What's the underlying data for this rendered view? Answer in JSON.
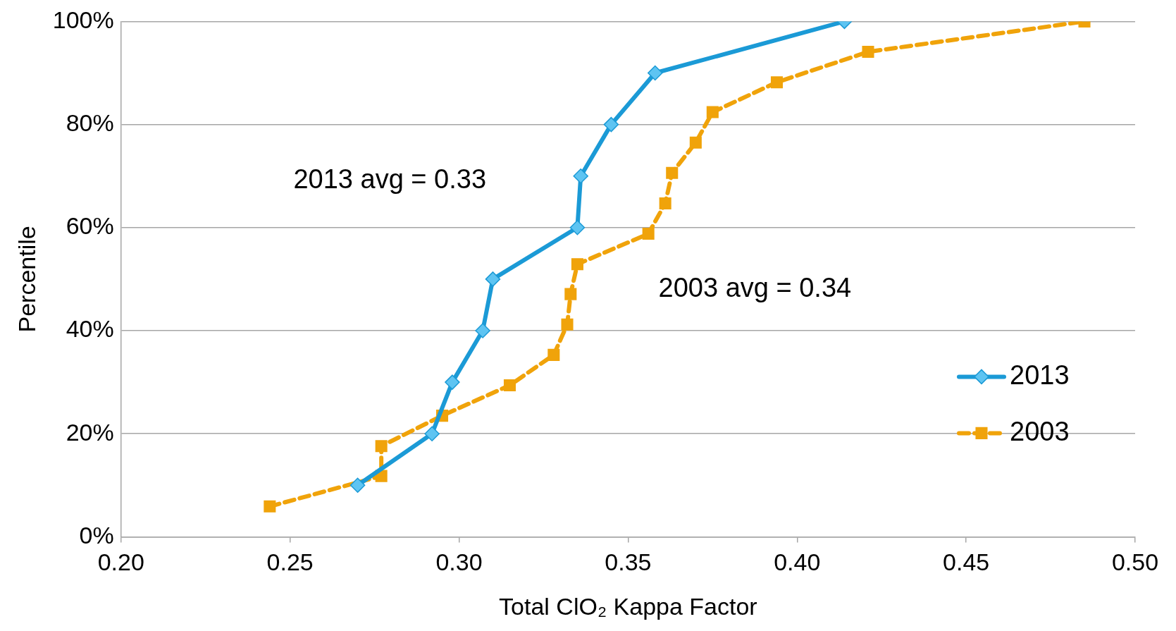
{
  "chart_data": {
    "type": "line",
    "xlabel": "Total ClO₂ Kappa Factor",
    "ylabel": "Percentile",
    "xlim": [
      0.2,
      0.5
    ],
    "xticks": [
      {
        "value": 0.2,
        "label": "0.20"
      },
      {
        "value": 0.25,
        "label": "0.25"
      },
      {
        "value": 0.3,
        "label": "0.30"
      },
      {
        "value": 0.35,
        "label": "0.35"
      },
      {
        "value": 0.4,
        "label": "0.40"
      },
      {
        "value": 0.45,
        "label": "0.45"
      },
      {
        "value": 0.5,
        "label": "0.50"
      }
    ],
    "ylim": [
      0,
      100
    ],
    "yticks": [
      {
        "value": 0,
        "label": "0%"
      },
      {
        "value": 20,
        "label": "20%"
      },
      {
        "value": 40,
        "label": "40%"
      },
      {
        "value": 60,
        "label": "60%"
      },
      {
        "value": 80,
        "label": "80%"
      },
      {
        "value": 100,
        "label": "100%"
      }
    ],
    "grid": "y",
    "legend": "bottom right",
    "annotations": [
      "2013 avg = 0.33",
      "2003 avg = 0.34"
    ],
    "series": [
      {
        "name": "2013",
        "color": "#1b9ad6",
        "marker": "diamond",
        "line_style": "solid",
        "x": [
          0.27,
          0.292,
          0.298,
          0.307,
          0.31,
          0.335,
          0.336,
          0.345,
          0.358,
          0.414
        ],
        "values": [
          10,
          20,
          30,
          40,
          50,
          60,
          70,
          80,
          90,
          100
        ]
      },
      {
        "name": "2003",
        "color": "#f0a30a",
        "marker": "square",
        "line_style": "dashed",
        "x": [
          0.244,
          0.277,
          0.277,
          0.295,
          0.315,
          0.328,
          0.332,
          0.333,
          0.335,
          0.356,
          0.361,
          0.363,
          0.37,
          0.375,
          0.394,
          0.421,
          0.485
        ],
        "values": [
          5.9,
          11.8,
          17.6,
          23.5,
          29.4,
          35.3,
          41.2,
          47.1,
          52.9,
          58.8,
          64.7,
          70.6,
          76.5,
          82.4,
          88.2,
          94.1,
          100
        ]
      }
    ]
  }
}
